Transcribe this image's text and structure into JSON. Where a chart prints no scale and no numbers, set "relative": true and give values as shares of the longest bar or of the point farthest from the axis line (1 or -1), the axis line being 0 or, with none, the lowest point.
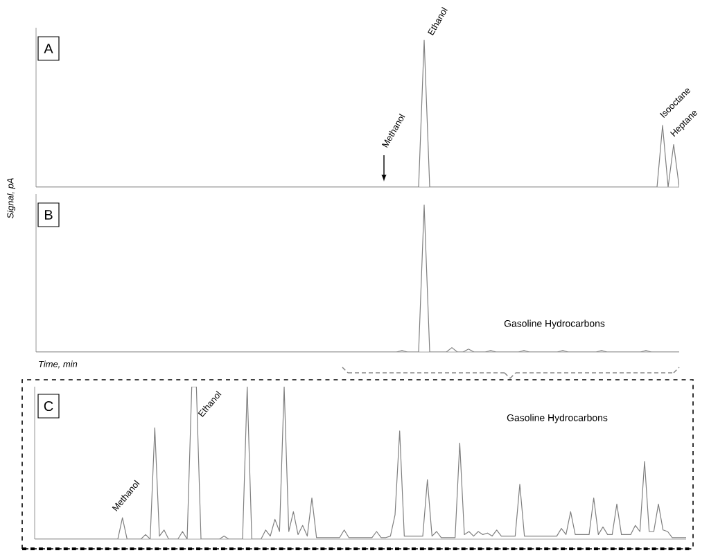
{
  "chart_data": [
    {
      "type": "line",
      "title": "A",
      "ylabel": "Signal, pA",
      "relative": true,
      "color": "#7f7f7f",
      "annotations": [
        "Methanol",
        "Ethanol",
        "Isooctane",
        "Heptane"
      ],
      "categories": [
        null,
        null,
        null,
        null,
        null,
        null,
        null,
        null,
        null,
        null,
        null,
        null,
        null,
        null,
        null,
        null,
        null,
        null,
        null,
        null,
        null,
        null,
        null,
        null,
        null,
        null,
        null,
        null,
        null,
        null,
        null,
        null,
        null,
        null,
        null,
        null,
        null,
        null,
        null,
        null,
        null,
        null,
        null,
        null,
        null,
        null,
        null,
        null,
        null,
        null,
        null,
        null,
        null,
        null,
        null,
        null,
        null,
        null,
        null,
        null,
        null,
        null,
        null,
        null,
        null,
        null,
        null,
        null,
        null,
        null,
        null,
        null,
        null,
        null,
        null,
        null,
        null,
        null,
        null,
        null,
        null,
        null,
        null,
        null,
        null,
        null,
        null,
        null,
        null,
        null,
        null,
        null,
        null,
        null,
        null,
        null,
        null,
        null,
        null,
        null,
        null,
        null,
        null,
        null,
        null,
        null,
        null,
        null,
        null,
        null,
        null,
        null,
        null,
        null,
        null,
        null,
        null
      ],
      "values": [
        0,
        0,
        0,
        0,
        0,
        0,
        0,
        0,
        0,
        0,
        0,
        0,
        0,
        0,
        0,
        0,
        0,
        0,
        0,
        0,
        0,
        0,
        0,
        0,
        0,
        0,
        0,
        0,
        0,
        0,
        0,
        0,
        0,
        0,
        0,
        0,
        0,
        0,
        0,
        0,
        0,
        0,
        0,
        0,
        0,
        0,
        0,
        0,
        0,
        0,
        0,
        0,
        0,
        0,
        0,
        0,
        0,
        0,
        0,
        0,
        0,
        0,
        0,
        0,
        0,
        0,
        0,
        0,
        0,
        0,
        1,
        0,
        0,
        0,
        0,
        0,
        0,
        0,
        0,
        0,
        0,
        0,
        0,
        0,
        0,
        0,
        0,
        0,
        0,
        0,
        0,
        0,
        0,
        0,
        0,
        0,
        0,
        0,
        0,
        0,
        0,
        0,
        0,
        0,
        0,
        0,
        0,
        0,
        0,
        0,
        0,
        0,
        0,
        0.42,
        0,
        0.29,
        0
      ]
    },
    {
      "type": "line",
      "title": "B",
      "xlabel": "Time, min",
      "relative": true,
      "color": "#7f7f7f",
      "annotations": [
        "Gasoline Hydrocarbons"
      ],
      "categories": [
        null,
        null,
        null,
        null,
        null,
        null,
        null,
        null,
        null,
        null,
        null,
        null,
        null,
        null,
        null,
        null,
        null,
        null,
        null,
        null,
        null,
        null,
        null,
        null,
        null,
        null,
        null,
        null,
        null,
        null,
        null,
        null,
        null,
        null,
        null,
        null,
        null,
        null,
        null,
        null,
        null,
        null,
        null,
        null,
        null,
        null,
        null,
        null,
        null,
        null,
        null,
        null,
        null,
        null,
        null,
        null,
        null,
        null,
        null,
        null,
        null,
        null,
        null,
        null,
        null,
        null,
        null,
        null,
        null,
        null,
        null,
        null,
        null,
        null,
        null,
        null,
        null,
        null,
        null,
        null,
        null,
        null,
        null,
        null,
        null,
        null,
        null,
        null,
        null,
        null,
        null,
        null,
        null,
        null,
        null,
        null,
        null,
        null,
        null,
        null,
        null,
        null,
        null,
        null,
        null,
        null,
        null,
        null,
        null,
        null,
        null,
        null,
        null,
        null,
        null,
        null,
        null
      ],
      "values": [
        0,
        0,
        0,
        0,
        0,
        0,
        0,
        0,
        0,
        0,
        0,
        0,
        0,
        0,
        0,
        0,
        0,
        0,
        0,
        0,
        0,
        0,
        0,
        0,
        0,
        0,
        0,
        0,
        0,
        0,
        0,
        0,
        0,
        0,
        0,
        0,
        0,
        0,
        0,
        0,
        0,
        0,
        0,
        0,
        0,
        0,
        0,
        0,
        0,
        0,
        0,
        0,
        0,
        0,
        0,
        0,
        0,
        0,
        0,
        0,
        0,
        0,
        0,
        0,
        0,
        0,
        0.01,
        0,
        0,
        0,
        1,
        0,
        0,
        0,
        0,
        0.03,
        0,
        0,
        0.02,
        0,
        0,
        0,
        0.01,
        0,
        0,
        0,
        0,
        0,
        0.01,
        0,
        0,
        0,
        0,
        0,
        0,
        0.01,
        0,
        0,
        0,
        0,
        0,
        0,
        0.01,
        0,
        0,
        0,
        0,
        0,
        0,
        0,
        0.01,
        0,
        0,
        0,
        0,
        0,
        0
      ]
    },
    {
      "type": "line",
      "title": "C",
      "relative": true,
      "color": "#7f7f7f",
      "annotations": [
        "Methanol",
        "Ethanol",
        "Gasoline Hydrocarbons"
      ],
      "categories": [
        null,
        null,
        null,
        null,
        null,
        null,
        null,
        null,
        null,
        null,
        null,
        null,
        null,
        null,
        null,
        null,
        null,
        null,
        null,
        null,
        null,
        null,
        null,
        null,
        null,
        null,
        null,
        null,
        null,
        null,
        null,
        null,
        null,
        null,
        null,
        null,
        null,
        null,
        null,
        null,
        null,
        null,
        null,
        null,
        null,
        null,
        null,
        null,
        null,
        null,
        null,
        null,
        null,
        null,
        null,
        null,
        null,
        null,
        null,
        null,
        null,
        null,
        null,
        null,
        null,
        null,
        null,
        null,
        null,
        null,
        null,
        null,
        null,
        null,
        null,
        null,
        null,
        null,
        null,
        null,
        null,
        null,
        null,
        null,
        null,
        null,
        null,
        null,
        null,
        null,
        null,
        null,
        null,
        null,
        null,
        null,
        null,
        null,
        null,
        null,
        null,
        null,
        null,
        null,
        null,
        null,
        null,
        null,
        null,
        null,
        null,
        null,
        null,
        null,
        null,
        null,
        null,
        null,
        null,
        null,
        null,
        null,
        null,
        null,
        null,
        null,
        null,
        null,
        null,
        null,
        null,
        null,
        null,
        null,
        null,
        null,
        null,
        null,
        null,
        null,
        null,
        null
      ],
      "values": [
        0,
        0,
        0,
        0,
        0,
        0,
        0,
        0,
        0,
        0,
        0,
        0,
        0,
        0,
        0,
        0,
        0,
        0,
        0,
        0.14,
        0,
        0,
        0,
        0,
        0.03,
        0,
        0.73,
        0.02,
        0.06,
        0,
        0,
        0,
        0.05,
        0,
        1,
        1,
        0,
        0,
        0,
        0,
        0,
        0.02,
        0,
        0,
        0,
        0,
        1,
        0,
        0,
        0,
        0.06,
        0.02,
        0.13,
        0.05,
        1,
        0.05,
        0.18,
        0.03,
        0.09,
        0.02,
        0.27,
        0.01,
        0.01,
        0.01,
        0.01,
        0.01,
        0.01,
        0.06,
        0.01,
        0.01,
        0.01,
        0.01,
        0.01,
        0.01,
        0.05,
        0.01,
        0.01,
        0.02,
        0.16,
        0.71,
        0.02,
        0.02,
        0.02,
        0.02,
        0.02,
        0.39,
        0.02,
        0.05,
        0.01,
        0.01,
        0.01,
        0.01,
        0.63,
        0.03,
        0.05,
        0.02,
        0.05,
        0.03,
        0.04,
        0.02,
        0.06,
        0.02,
        0.02,
        0.02,
        0.02,
        0.36,
        0.02,
        0.02,
        0.02,
        0.02,
        0.02,
        0.02,
        0.02,
        0.02,
        0.07,
        0.03,
        0.18,
        0.03,
        0.03,
        0.03,
        0.03,
        0.27,
        0.03,
        0.08,
        0.03,
        0.03,
        0.23,
        0.03,
        0.03,
        0.03,
        0.09,
        0.05,
        0.51,
        0.05,
        0.05,
        0.23,
        0.06,
        0.05,
        0.01,
        0.01,
        0.01,
        0.01
      ]
    }
  ]
}
